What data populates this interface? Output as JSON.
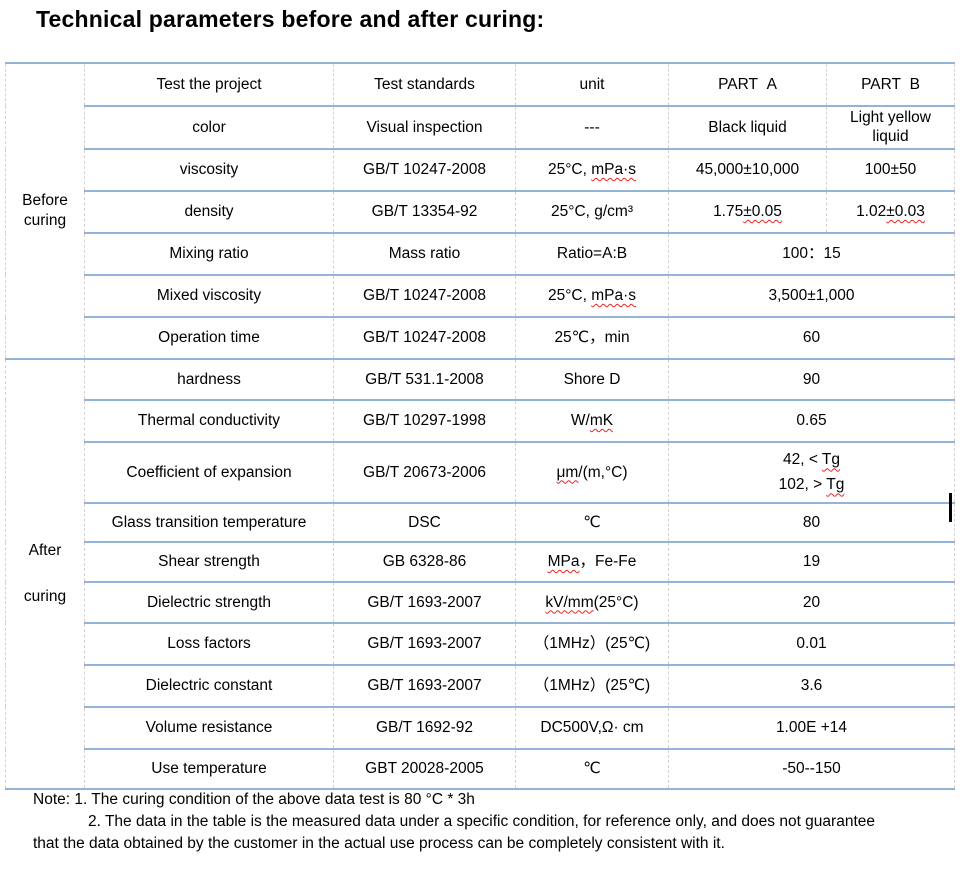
{
  "title": "Technical parameters before and after curing:",
  "colors": {
    "table_line": "#95b3d7",
    "gridline": "#d2d2d2",
    "spellcheck": "#ee2222"
  },
  "table": {
    "header": {
      "project": "Test the project",
      "standard": "Test standards",
      "unit": "unit",
      "part_a": "PART  A",
      "part_b": "PART  B"
    },
    "sections": [
      {
        "label_lines": [
          "Before",
          "curing"
        ],
        "rows": [
          {
            "project": "color",
            "standard": "Visual inspection",
            "unit": {
              "pre": "---"
            },
            "values": [
              {
                "pre": "Black liquid"
              },
              {
                "pre": "Light yellow liquid"
              }
            ]
          },
          {
            "project": "viscosity",
            "standard": "GB/T 10247-2008",
            "unit": {
              "pre": "25°C, ",
              "wavy": "mPa·s"
            },
            "values": [
              {
                "pre": "45,000±10,000"
              },
              {
                "pre": "100±50"
              }
            ]
          },
          {
            "project": "density",
            "standard": "GB/T 13354-92",
            "unit": {
              "pre": "25°C, g/cm³"
            },
            "values": [
              {
                "pre": "1.75",
                "wavy": "±0.05"
              },
              {
                "pre": "1.02",
                "wavy": "±0.03"
              }
            ]
          },
          {
            "project": "Mixing ratio",
            "standard": "Mass ratio",
            "unit": {
              "pre": "Ratio=A:B"
            },
            "merged": {
              "pre": "100：15"
            }
          },
          {
            "project": "Mixed viscosity",
            "standard": "GB/T 10247-2008",
            "unit": {
              "pre": "25°C, ",
              "wavy": "mPa·s"
            },
            "merged": {
              "pre": "3,500±1,000"
            }
          },
          {
            "project": "Operation time",
            "standard": "GB/T 10247-2008",
            "unit": {
              "pre": "25℃，min"
            },
            "merged": {
              "pre": "60"
            }
          }
        ]
      },
      {
        "label_lines": [
          "After",
          "curing"
        ],
        "rows": [
          {
            "project": "hardness",
            "standard": "GB/T 531.1-2008",
            "unit": {
              "pre": "Shore D"
            },
            "merged": {
              "pre": "90"
            }
          },
          {
            "project": "Thermal conductivity",
            "standard": "GB/T 10297-1998",
            "unit": {
              "pre": "W/",
              "wavy": "mK"
            },
            "merged": {
              "pre": "0.65"
            }
          },
          {
            "project": "Coefficient of expansion",
            "standard": "GB/T 20673-2006",
            "unit": {
              "wavy": "μm",
              "post": "/(m,°C)"
            },
            "merged": {
              "lines": [
                {
                  "pre": "42, < ",
                  "wavy": "Tg"
                },
                {
                  "pre": "102, > ",
                  "wavy": "Tg"
                }
              ]
            }
          },
          {
            "project": "Glass transition temperature",
            "standard": "DSC",
            "unit": {
              "pre": "℃"
            },
            "merged": {
              "pre": "80"
            }
          },
          {
            "project": "Shear strength",
            "standard": "GB 6328-86",
            "unit": {
              "wavy": "MPa",
              "post": "，Fe-Fe"
            },
            "merged": {
              "pre": "19"
            }
          },
          {
            "project": "Dielectric strength",
            "standard": "GB/T 1693-2007",
            "unit": {
              "wavy": "kV/mm",
              "post": "(25°C)"
            },
            "merged": {
              "pre": "20"
            }
          },
          {
            "project": "Loss factors",
            "standard": "GB/T 1693-2007",
            "unit": {
              "pre": "（1MHz）(25℃)"
            },
            "merged": {
              "pre": "0.01"
            }
          },
          {
            "project": "Dielectric constant",
            "standard": "GB/T 1693-2007",
            "unit": {
              "pre": "（1MHz）(25℃)"
            },
            "merged": {
              "pre": "3.6"
            }
          },
          {
            "project": "Volume resistance",
            "standard": "GB/T 1692-92",
            "unit": {
              "pre": "DC500V,Ω· cm"
            },
            "merged": {
              "pre": "1.00E +14"
            }
          },
          {
            "project": "Use temperature",
            "standard": "GBT 20028-2005",
            "unit": {
              "pre": "℃"
            },
            "merged": {
              "pre": "-50--150"
            }
          }
        ]
      }
    ]
  },
  "note": {
    "line1": "Note: 1. The curing condition of the above data test is 80 °C * 3h",
    "line2": "2. The data in the table is the measured data under a specific condition, for reference only, and does not guarantee",
    "line3": "that the data obtained by the customer in the actual use process can be completely consistent with it."
  }
}
